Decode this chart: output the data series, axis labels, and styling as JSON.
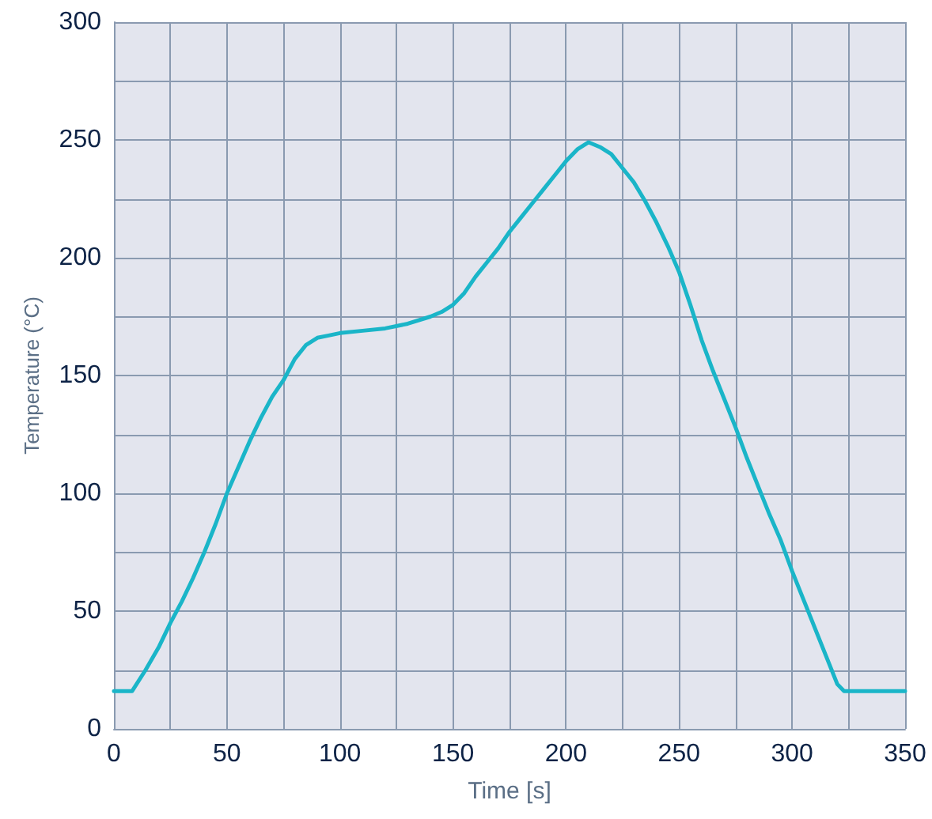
{
  "chart_data": {
    "type": "line",
    "xlabel": "Time [s]",
    "ylabel": "Temperature (°C)",
    "x": [
      0,
      8,
      14,
      20,
      25,
      30,
      35,
      40,
      45,
      50,
      55,
      60,
      65,
      70,
      75,
      80,
      85,
      90,
      95,
      100,
      110,
      120,
      130,
      140,
      145,
      150,
      155,
      160,
      165,
      170,
      175,
      180,
      185,
      190,
      195,
      200,
      205,
      210,
      215,
      220,
      225,
      230,
      235,
      240,
      245,
      250,
      255,
      260,
      265,
      270,
      275,
      280,
      285,
      290,
      295,
      300,
      305,
      310,
      315,
      320,
      323,
      330,
      340,
      350
    ],
    "series": [
      {
        "color": "#1ab5c8",
        "values": [
          16,
          16,
          25,
          35,
          45,
          54,
          64,
          75,
          87,
          100,
          111,
          122,
          132,
          141,
          148,
          157,
          163,
          166,
          167,
          168,
          169,
          170,
          172,
          175,
          177,
          180,
          185,
          192,
          198,
          204,
          211,
          217,
          223,
          229,
          235,
          241,
          246,
          249,
          247,
          244,
          238,
          232,
          224,
          215,
          205,
          194,
          180,
          165,
          152,
          140,
          128,
          115,
          103,
          91,
          80,
          67,
          55,
          43,
          31,
          19,
          16,
          16,
          16,
          16
        ]
      }
    ],
    "xlim": [
      0,
      350
    ],
    "ylim": [
      0,
      300
    ],
    "xticks": [
      0,
      {
        "value": 25,
        "label": null
      },
      50,
      {
        "value": 75,
        "label": null
      },
      100,
      {
        "value": 125,
        "label": null
      },
      150,
      {
        "value": 175,
        "label": null
      },
      200,
      {
        "value": 225,
        "label": null
      },
      250,
      {
        "value": 275,
        "label": null
      },
      300,
      {
        "value": 325,
        "label": null
      },
      350
    ],
    "yticks": [
      0,
      {
        "value": 25,
        "label": null
      },
      50,
      {
        "value": 75,
        "label": null
      },
      100,
      {
        "value": 125,
        "label": null
      },
      150,
      {
        "value": 175,
        "label": null
      },
      200,
      {
        "value": 225,
        "label": null
      },
      250,
      {
        "value": 275,
        "label": null
      },
      300
    ],
    "grid": true,
    "marker": "none",
    "line_style": "solid"
  }
}
